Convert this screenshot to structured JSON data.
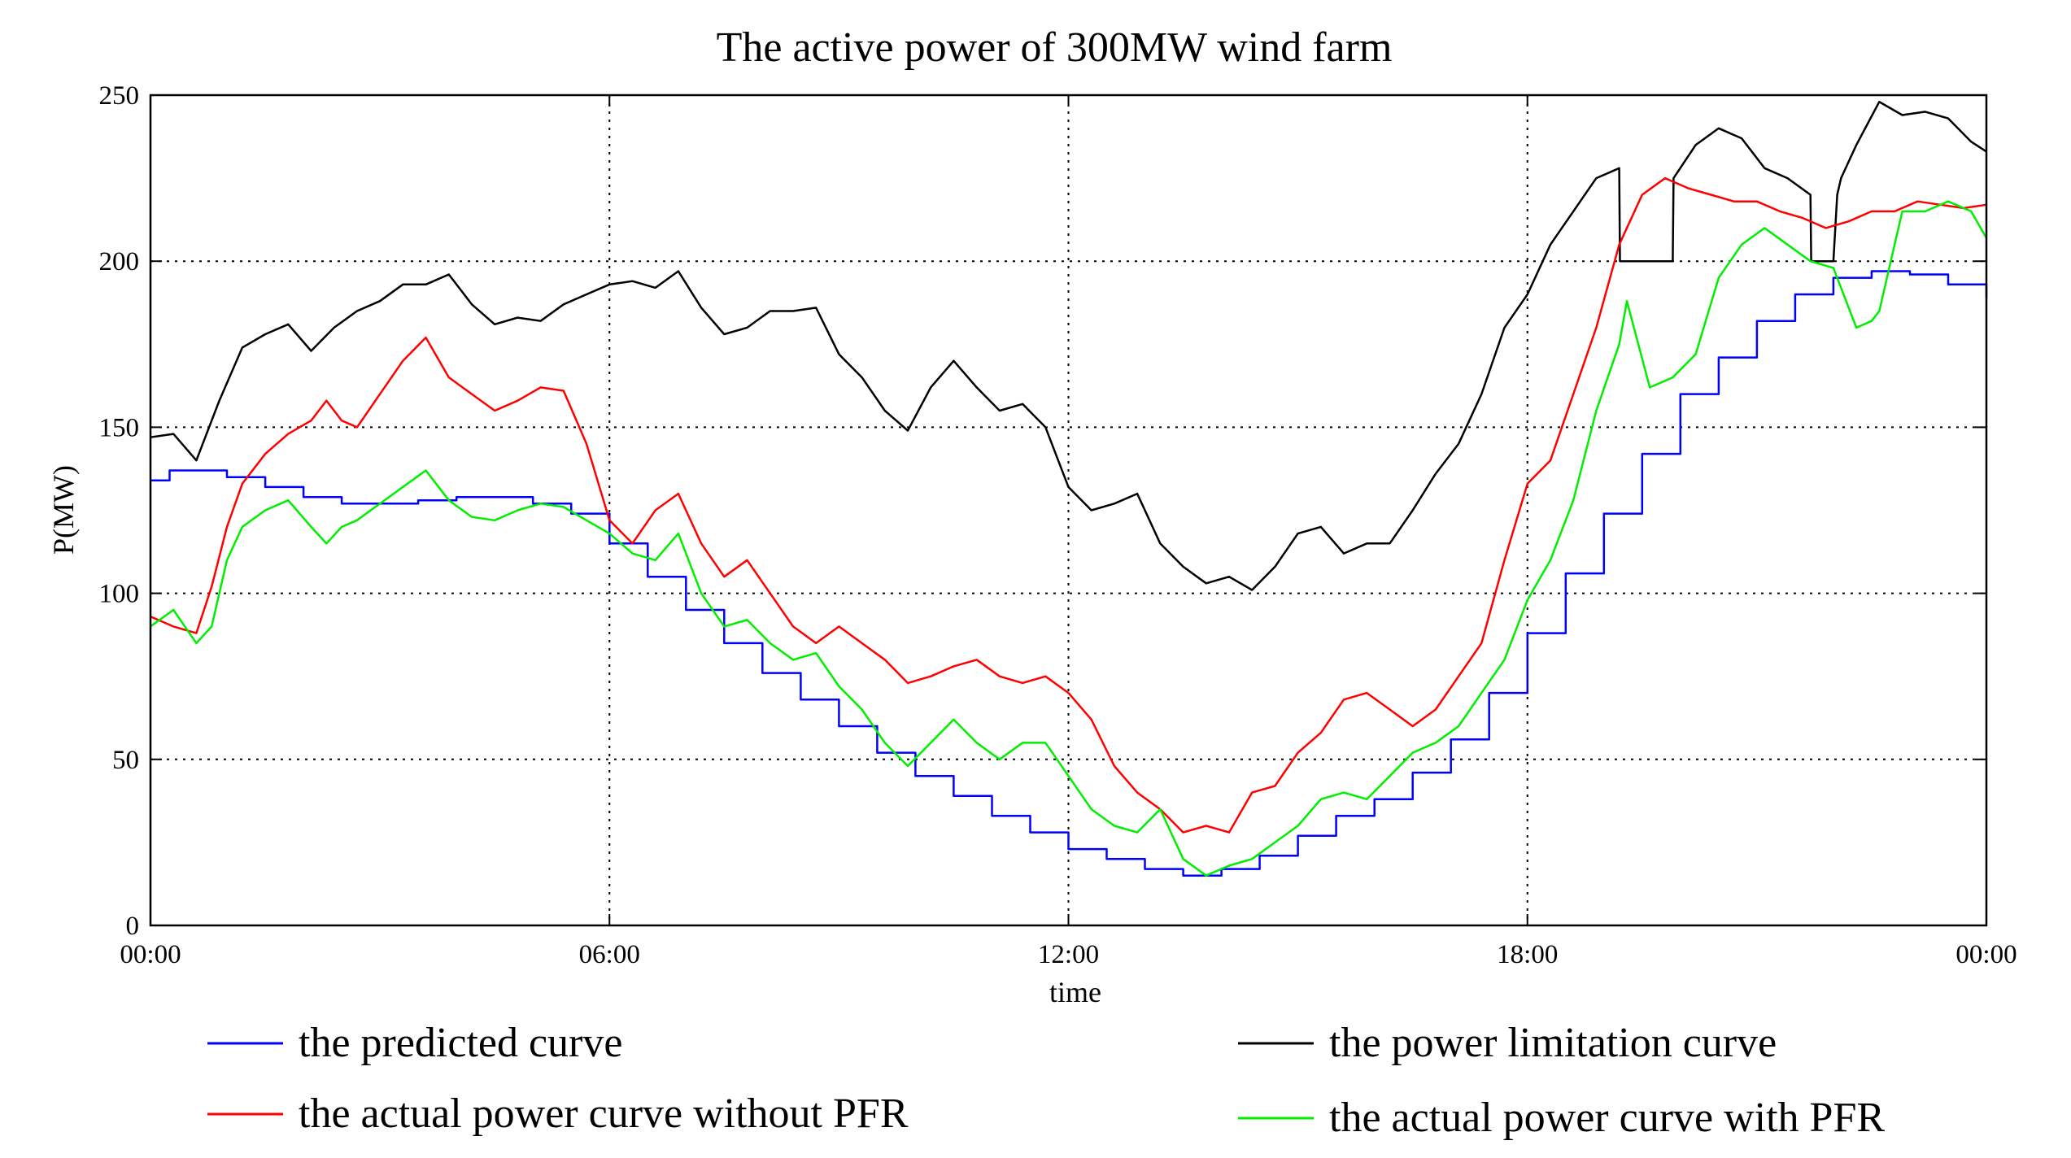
{
  "chart_data": {
    "type": "line",
    "title": "The active power of 300MW wind farm",
    "xlabel": "time",
    "ylabel": "P(MW)",
    "xlim": [
      0,
      24
    ],
    "ylim": [
      0,
      250
    ],
    "x_ticks": [
      {
        "value": 0,
        "label": "00:00"
      },
      {
        "value": 6,
        "label": "06:00"
      },
      {
        "value": 12,
        "label": "12:00"
      },
      {
        "value": 18,
        "label": "18:00"
      },
      {
        "value": 24,
        "label": "00:00"
      }
    ],
    "y_ticks": [
      {
        "value": 0,
        "label": "0"
      },
      {
        "value": 50,
        "label": "50"
      },
      {
        "value": 100,
        "label": "100"
      },
      {
        "value": 150,
        "label": "150"
      },
      {
        "value": 200,
        "label": "200"
      },
      {
        "value": 250,
        "label": "250"
      }
    ],
    "grid": true,
    "series": [
      {
        "name": "the predicted curve",
        "color": "#0000ff",
        "step": true,
        "x": [
          0,
          0.25,
          1,
          1.5,
          2,
          2.5,
          3,
          3.5,
          4,
          4.5,
          5,
          5.5,
          6,
          6.5,
          7,
          7.5,
          8,
          8.5,
          9,
          9.5,
          10,
          10.5,
          11,
          11.5,
          12,
          12.5,
          13,
          13.5,
          14,
          14.5,
          15,
          15.5,
          16,
          16.5,
          17,
          17.5,
          18,
          18.5,
          19,
          19.5,
          20,
          20.5,
          21,
          21.5,
          22,
          22.5,
          23,
          23.5,
          24
        ],
        "y": [
          134,
          137,
          135,
          132,
          129,
          127,
          127,
          128,
          129,
          129,
          127,
          124,
          115,
          105,
          95,
          85,
          76,
          68,
          60,
          52,
          45,
          39,
          33,
          28,
          23,
          20,
          17,
          15,
          17,
          21,
          27,
          33,
          38,
          46,
          56,
          70,
          88,
          106,
          124,
          142,
          160,
          171,
          182,
          190,
          195,
          197,
          196,
          193,
          189
        ]
      },
      {
        "name": "the power limitation curve",
        "color": "#000000",
        "step": false,
        "x": [
          0,
          0.3,
          0.6,
          0.9,
          1.2,
          1.5,
          1.8,
          2.1,
          2.4,
          2.7,
          3.0,
          3.3,
          3.6,
          3.9,
          4.2,
          4.5,
          4.8,
          5.1,
          5.4,
          5.7,
          6.0,
          6.3,
          6.6,
          6.9,
          7.2,
          7.5,
          7.8,
          8.1,
          8.4,
          8.7,
          9.0,
          9.3,
          9.6,
          9.9,
          10.2,
          10.5,
          10.8,
          11.1,
          11.4,
          11.7,
          12.0,
          12.3,
          12.6,
          12.9,
          13.2,
          13.5,
          13.8,
          14.1,
          14.4,
          14.7,
          15.0,
          15.3,
          15.6,
          15.9,
          16.2,
          16.5,
          16.8,
          17.1,
          17.4,
          17.7,
          18.0,
          18.3,
          18.6,
          18.9,
          19.2,
          19.21,
          19.5,
          19.8,
          19.9,
          19.91,
          20.2,
          20.5,
          20.8,
          21.1,
          21.4,
          21.7,
          21.71,
          22.0,
          22.05,
          22.1,
          22.3,
          22.6,
          22.9,
          23.2,
          23.5,
          23.8,
          24
        ],
        "y": [
          147,
          148,
          140,
          158,
          174,
          178,
          181,
          173,
          180,
          185,
          188,
          193,
          193,
          196,
          187,
          181,
          183,
          182,
          187,
          190,
          193,
          194,
          192,
          197,
          186,
          178,
          180,
          185,
          185,
          186,
          172,
          165,
          155,
          149,
          162,
          170,
          162,
          155,
          157,
          150,
          132,
          125,
          127,
          130,
          115,
          108,
          103,
          105,
          101,
          108,
          118,
          120,
          112,
          115,
          115,
          125,
          136,
          145,
          160,
          180,
          190,
          205,
          215,
          225,
          228,
          200,
          200,
          200,
          200,
          225,
          235,
          240,
          237,
          228,
          225,
          220,
          200,
          200,
          220,
          225,
          235,
          248,
          244,
          245,
          243,
          236,
          233
        ]
      },
      {
        "name": "the actual power curve without PFR",
        "color": "#ff0000",
        "step": false,
        "x": [
          0,
          0.3,
          0.6,
          0.8,
          1.0,
          1.2,
          1.5,
          1.8,
          2.1,
          2.3,
          2.5,
          2.7,
          3.0,
          3.3,
          3.6,
          3.9,
          4.2,
          4.5,
          4.8,
          5.1,
          5.4,
          5.7,
          6.0,
          6.3,
          6.6,
          6.9,
          7.2,
          7.5,
          7.8,
          8.1,
          8.4,
          8.7,
          9.0,
          9.3,
          9.6,
          9.9,
          10.2,
          10.5,
          10.8,
          11.1,
          11.4,
          11.7,
          12.0,
          12.3,
          12.6,
          12.9,
          13.2,
          13.5,
          13.8,
          14.1,
          14.4,
          14.7,
          15.0,
          15.3,
          15.6,
          15.9,
          16.2,
          16.5,
          16.8,
          17.1,
          17.4,
          17.7,
          18.0,
          18.3,
          18.6,
          18.9,
          19.2,
          19.5,
          19.8,
          20.1,
          20.4,
          20.7,
          21.0,
          21.3,
          21.6,
          21.9,
          22.2,
          22.5,
          22.8,
          23.1,
          23.4,
          23.7,
          24
        ],
        "y": [
          93,
          90,
          88,
          102,
          120,
          133,
          142,
          148,
          152,
          158,
          152,
          150,
          160,
          170,
          177,
          165,
          160,
          155,
          158,
          162,
          161,
          145,
          122,
          115,
          125,
          130,
          115,
          105,
          110,
          100,
          90,
          85,
          90,
          85,
          80,
          73,
          75,
          78,
          80,
          75,
          73,
          75,
          70,
          62,
          48,
          40,
          35,
          28,
          30,
          28,
          40,
          42,
          52,
          58,
          68,
          70,
          65,
          60,
          65,
          75,
          85,
          110,
          133,
          140,
          160,
          180,
          205,
          220,
          225,
          222,
          220,
          218,
          218,
          215,
          213,
          210,
          212,
          215,
          215,
          218,
          217,
          216,
          217
        ]
      },
      {
        "name": "the actual power curve with PFR",
        "color": "#00ee00",
        "step": false,
        "x": [
          0,
          0.3,
          0.6,
          0.8,
          1.0,
          1.2,
          1.5,
          1.8,
          2.1,
          2.3,
          2.5,
          2.7,
          3.0,
          3.3,
          3.6,
          3.9,
          4.2,
          4.5,
          4.8,
          5.1,
          5.4,
          5.7,
          6.0,
          6.3,
          6.6,
          6.9,
          7.2,
          7.5,
          7.8,
          8.1,
          8.4,
          8.7,
          9.0,
          9.3,
          9.6,
          9.9,
          10.2,
          10.5,
          10.8,
          11.1,
          11.4,
          11.7,
          12.0,
          12.3,
          12.6,
          12.9,
          13.2,
          13.5,
          13.8,
          14.1,
          14.4,
          14.7,
          15.0,
          15.3,
          15.6,
          15.9,
          16.2,
          16.5,
          16.8,
          17.1,
          17.4,
          17.7,
          18.0,
          18.3,
          18.6,
          18.9,
          19.2,
          19.3,
          19.6,
          19.9,
          20.2,
          20.5,
          20.8,
          21.1,
          21.4,
          21.7,
          22.0,
          22.3,
          22.5,
          22.6,
          22.9,
          23.2,
          23.5,
          23.8,
          24
        ],
        "y": [
          90,
          95,
          85,
          90,
          110,
          120,
          125,
          128,
          120,
          115,
          120,
          122,
          127,
          132,
          137,
          128,
          123,
          122,
          125,
          127,
          126,
          122,
          118,
          112,
          110,
          118,
          100,
          90,
          92,
          85,
          80,
          82,
          72,
          65,
          55,
          48,
          55,
          62,
          55,
          50,
          55,
          55,
          45,
          35,
          30,
          28,
          35,
          20,
          15,
          18,
          20,
          25,
          30,
          38,
          40,
          38,
          45,
          52,
          55,
          60,
          70,
          80,
          98,
          110,
          128,
          155,
          175,
          188,
          162,
          165,
          172,
          195,
          205,
          210,
          205,
          200,
          198,
          180,
          182,
          185,
          215,
          215,
          218,
          215,
          207
        ]
      }
    ],
    "legend": {
      "placement": "bottom",
      "entries": [
        {
          "label": "the predicted curve",
          "color": "#0000ff"
        },
        {
          "label": "the power limitation curve",
          "color": "#000000"
        },
        {
          "label": "the actual power curve without PFR",
          "color": "#ff0000"
        },
        {
          "label": "the actual power curve with PFR",
          "color": "#00ee00"
        }
      ]
    }
  }
}
